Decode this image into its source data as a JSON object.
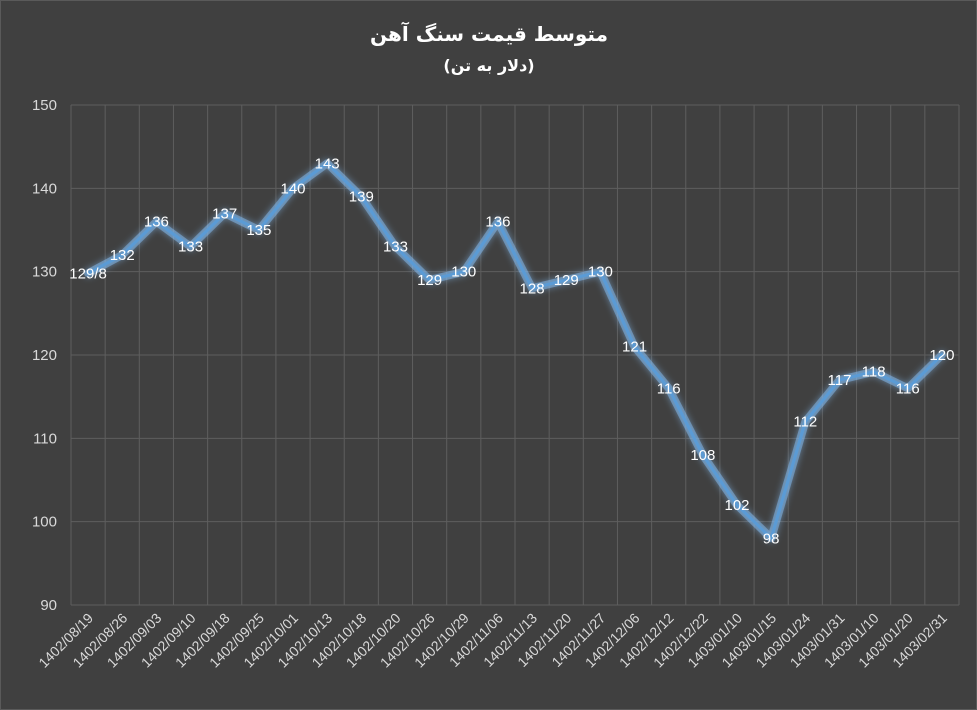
{
  "chart_data": {
    "type": "line",
    "title": "متوسط قیمت سنگ آهن",
    "subtitle": "(دلار به تن)",
    "categories": [
      "1402/08/19",
      "1402/08/26",
      "1402/09/03",
      "1402/09/10",
      "1402/09/18",
      "1402/09/25",
      "1402/10/01",
      "1402/10/13",
      "1402/10/18",
      "1402/10/20",
      "1402/10/26",
      "1402/10/29",
      "1402/11/06",
      "1402/11/13",
      "1402/11/20",
      "1402/11/27",
      "1402/12/06",
      "1402/12/12",
      "1402/12/22",
      "1403/01/10",
      "1403/01/15",
      "1403/01/24",
      "1403/01/31",
      "1403/01/10",
      "1403/01/20",
      "1403/02/31"
    ],
    "values": [
      129.8,
      132,
      136,
      133,
      137,
      135,
      140,
      143,
      139,
      133,
      129,
      130,
      136,
      128,
      129,
      130,
      121,
      116,
      108,
      102,
      98,
      112,
      117,
      118,
      116,
      120
    ],
    "data_labels": [
      "129/8",
      "132",
      "136",
      "133",
      "137",
      "135",
      "140",
      "143",
      "139",
      "133",
      "129",
      "130",
      "136",
      "128",
      "129",
      "130",
      "121",
      "116",
      "108",
      "102",
      "98",
      "112",
      "117",
      "118",
      "116",
      "120"
    ],
    "ylim": [
      90,
      150
    ],
    "yticks": [
      90,
      100,
      110,
      120,
      130,
      140,
      150
    ],
    "grid": true,
    "legend": "none",
    "colors": {
      "background": "#404040",
      "line": "#5b9bd5",
      "glow": "#7fb4e8",
      "grid": "#5e5e5e",
      "text": "#d9d9d9"
    }
  }
}
